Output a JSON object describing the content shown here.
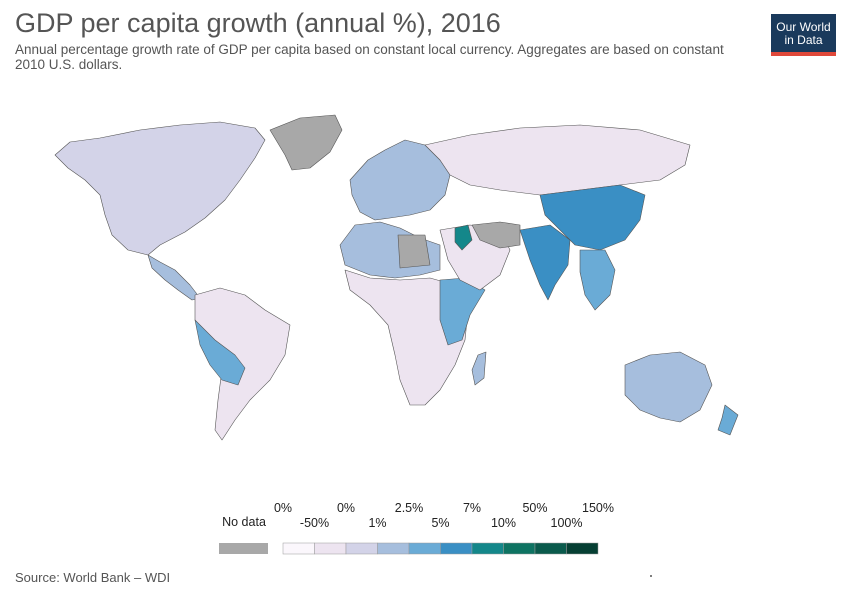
{
  "header": {
    "title": "GDP per capita growth (annual %), 2016",
    "subtitle": "Annual percentage growth rate of GDP per capita based on constant local currency. Aggregates are based on constant 2010 U.S. dollars.",
    "logo_text": "Our World in Data"
  },
  "colors": {
    "land_default": "#ede4f0",
    "nodata": "#a8a8a8",
    "border": "#555555",
    "logo_bg": "#1a3a5c",
    "logo_accent": "#e0483a"
  },
  "legend": {
    "nodata_label": "No data",
    "upper_labels": [
      "0%",
      "0%",
      "2.5%",
      "7%",
      "50%",
      "150%"
    ],
    "lower_labels": [
      "-50%",
      "1%",
      "5%",
      "10%",
      "100%"
    ],
    "bins": [
      {
        "color": "#fbf7fc"
      },
      {
        "color": "#ede4f0"
      },
      {
        "color": "#d3d3e8"
      },
      {
        "color": "#a6bedd"
      },
      {
        "color": "#6aabd6"
      },
      {
        "color": "#3a8fc4"
      },
      {
        "color": "#14878a"
      },
      {
        "color": "#0e7362"
      },
      {
        "color": "#0a5a4c"
      },
      {
        "color": "#063f33"
      }
    ]
  },
  "regions": [
    {
      "name": "North America",
      "color": "#d3d3e8"
    },
    {
      "name": "Greenland",
      "color": "#a8a8a8"
    },
    {
      "name": "Central America",
      "color": "#a6bedd"
    },
    {
      "name": "South America",
      "color": "#ede4f0"
    },
    {
      "name": "Peru / Bolivia",
      "color": "#6aabd6"
    },
    {
      "name": "Europe",
      "color": "#a6bedd"
    },
    {
      "name": "Russia",
      "color": "#ede4f0"
    },
    {
      "name": "North Africa",
      "color": "#a6bedd"
    },
    {
      "name": "Libya",
      "color": "#a8a8a8"
    },
    {
      "name": "Sub-Saharan Africa",
      "color": "#ede4f0"
    },
    {
      "name": "East Africa",
      "color": "#6aabd6"
    },
    {
      "name": "Middle East",
      "color": "#ede4f0"
    },
    {
      "name": "Iraq",
      "color": "#14878a"
    },
    {
      "name": "Iran / Afghanistan",
      "color": "#a8a8a8"
    },
    {
      "name": "India",
      "color": "#3a8fc4"
    },
    {
      "name": "China",
      "color": "#3a8fc4"
    },
    {
      "name": "Southeast Asia",
      "color": "#6aabd6"
    },
    {
      "name": "Australia",
      "color": "#a6bedd"
    },
    {
      "name": "Madagascar",
      "color": "#a6bedd"
    },
    {
      "name": "New Zealand",
      "color": "#6aabd6"
    }
  ],
  "footer": {
    "source": "Source: World Bank – WDI"
  }
}
